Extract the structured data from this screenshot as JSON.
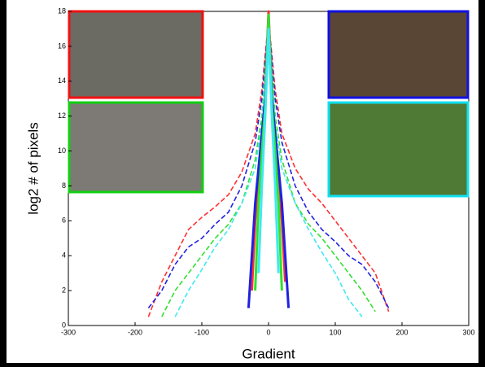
{
  "chart_data": {
    "type": "line",
    "xlabel": "Gradient",
    "ylabel": "log2 # of pixels",
    "xlim": [
      -300,
      300
    ],
    "xticks": [
      -300,
      -200,
      -100,
      0,
      100,
      200,
      300
    ],
    "ylim": [
      0,
      18
    ],
    "yticks": [
      0,
      2,
      4,
      6,
      8,
      10,
      12,
      14,
      16,
      18
    ],
    "series": [
      {
        "color": "#ff3030",
        "style": "dashed",
        "x": [
          -180,
          -160,
          -140,
          -120,
          -100,
          -80,
          -60,
          -40,
          -20,
          -10,
          0,
          10,
          20,
          40,
          60,
          80,
          100,
          120,
          140,
          160,
          180
        ],
        "values": [
          0.5,
          2.5,
          4,
          5.5,
          6.2,
          6.8,
          7.5,
          8.8,
          11,
          13.5,
          17.5,
          13.5,
          11,
          9,
          7.8,
          7,
          6,
          5,
          4,
          3,
          0.8
        ]
      },
      {
        "color": "#2020e0",
        "style": "dashed",
        "x": [
          -180,
          -160,
          -140,
          -120,
          -100,
          -80,
          -60,
          -40,
          -20,
          -10,
          0,
          10,
          20,
          40,
          60,
          80,
          100,
          120,
          140,
          160,
          180
        ],
        "values": [
          1,
          2,
          3.5,
          4.5,
          5,
          5.8,
          6.5,
          8,
          10.5,
          13,
          17.5,
          13,
          10.5,
          8,
          6.5,
          5.5,
          4.8,
          4,
          3.5,
          2.5,
          1
        ]
      },
      {
        "color": "#30e030",
        "style": "dashed",
        "x": [
          -180,
          -160,
          -140,
          -120,
          -100,
          -80,
          -60,
          -40,
          -20,
          -10,
          0,
          10,
          20,
          40,
          60,
          80,
          100,
          120,
          140,
          160,
          180
        ],
        "values": [
          null,
          0.5,
          2,
          3,
          4,
          5,
          5.8,
          7,
          9.5,
          12,
          17.5,
          12,
          9.5,
          7,
          5.8,
          5,
          4,
          3,
          2,
          0.8,
          null
        ]
      },
      {
        "color": "#40e8f0",
        "style": "dashed",
        "x": [
          -180,
          -160,
          -140,
          -120,
          -100,
          -80,
          -60,
          -40,
          -20,
          -10,
          0,
          10,
          20,
          40,
          60,
          80,
          100,
          120,
          140,
          160,
          180
        ],
        "values": [
          null,
          null,
          0.5,
          2,
          3.2,
          4.5,
          5.5,
          7,
          9,
          11.5,
          17,
          11.5,
          9,
          7,
          5.5,
          4.2,
          3,
          1.5,
          0.5,
          null,
          null
        ]
      },
      {
        "color": "#ff3030",
        "style": "solid",
        "x": [
          -30,
          -25,
          -20,
          -15,
          -10,
          -5,
          0,
          5,
          10,
          15,
          20,
          25,
          30
        ],
        "values": [
          null,
          2,
          6,
          8.5,
          10.5,
          13,
          18,
          13,
          10.5,
          8.5,
          6,
          2.5,
          null
        ]
      },
      {
        "color": "#2020e0",
        "style": "solid",
        "x": [
          -30,
          -25,
          -20,
          -15,
          -10,
          -5,
          0,
          5,
          10,
          15,
          20,
          25,
          30
        ],
        "values": [
          1,
          4,
          7,
          9,
          11,
          13,
          17.5,
          13,
          11,
          9,
          7,
          4,
          1
        ]
      },
      {
        "color": "#30e030",
        "style": "solid",
        "x": [
          -30,
          -25,
          -20,
          -15,
          -10,
          -5,
          0,
          5,
          10,
          15,
          20,
          25,
          30
        ],
        "values": [
          null,
          null,
          2,
          7,
          10,
          12.5,
          17.8,
          12.5,
          10,
          7,
          2,
          null,
          null
        ]
      },
      {
        "color": "#40e8f0",
        "style": "solid",
        "x": [
          -30,
          -25,
          -20,
          -15,
          -10,
          -5,
          0,
          5,
          10,
          15,
          20,
          25,
          30
        ],
        "values": [
          null,
          null,
          null,
          3,
          8,
          12,
          17,
          12,
          8,
          3,
          null,
          null,
          null
        ]
      }
    ]
  }
}
